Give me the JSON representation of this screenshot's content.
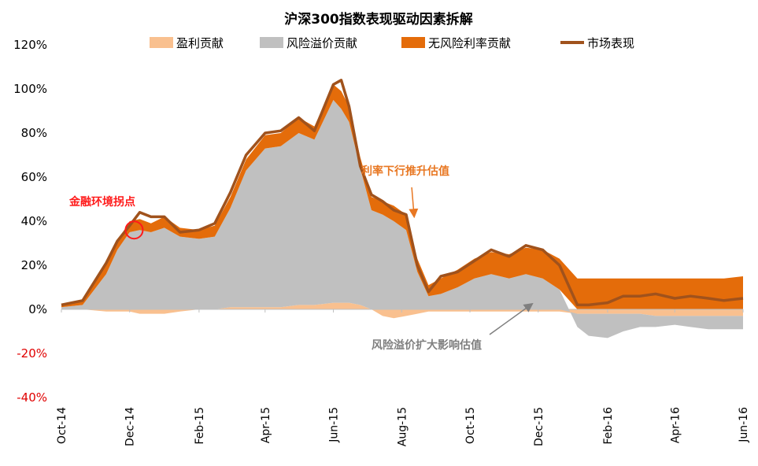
{
  "chart_data": {
    "type": "area",
    "title": "沪深300指数表现驱动因素拆解",
    "xlabel": "",
    "ylabel": "",
    "ylim": [
      -0.4,
      1.2
    ],
    "y_ticks": [
      {
        "value": 1.2,
        "label": "120%"
      },
      {
        "value": 1.0,
        "label": "100%"
      },
      {
        "value": 0.8,
        "label": "80%"
      },
      {
        "value": 0.6,
        "label": "60%"
      },
      {
        "value": 0.4,
        "label": "40%"
      },
      {
        "value": 0.2,
        "label": "20%"
      },
      {
        "value": 0.0,
        "label": "0%"
      },
      {
        "value": -0.2,
        "label": "-20%"
      },
      {
        "value": -0.4,
        "label": "-40%"
      }
    ],
    "x_range": [
      "2014-10-01",
      "2016-06-01"
    ],
    "x_ticks": [
      {
        "date": "2014-10-01",
        "label": "Oct-14"
      },
      {
        "date": "2014-12-01",
        "label": "Dec-14"
      },
      {
        "date": "2015-02-01",
        "label": "Feb-15"
      },
      {
        "date": "2015-04-01",
        "label": "Apr-15"
      },
      {
        "date": "2015-06-01",
        "label": "Jun-15"
      },
      {
        "date": "2015-08-01",
        "label": "Aug-15"
      },
      {
        "date": "2015-10-01",
        "label": "Oct-15"
      },
      {
        "date": "2015-12-01",
        "label": "Dec-15"
      },
      {
        "date": "2016-02-01",
        "label": "Feb-16"
      },
      {
        "date": "2016-04-01",
        "label": "Apr-16"
      },
      {
        "date": "2016-06-01",
        "label": "Jun-16"
      }
    ],
    "legend_position": "top",
    "grid": false,
    "x": [
      "2014-10-01",
      "2014-10-20",
      "2014-11-10",
      "2014-11-20",
      "2014-12-01",
      "2014-12-10",
      "2014-12-20",
      "2015-01-01",
      "2015-01-15",
      "2015-02-01",
      "2015-02-15",
      "2015-03-01",
      "2015-03-15",
      "2015-04-01",
      "2015-04-15",
      "2015-05-01",
      "2015-05-15",
      "2015-06-01",
      "2015-06-08",
      "2015-06-15",
      "2015-06-25",
      "2015-07-05",
      "2015-07-15",
      "2015-07-25",
      "2015-08-05",
      "2015-08-15",
      "2015-08-25",
      "2015-09-05",
      "2015-09-20",
      "2015-10-05",
      "2015-10-20",
      "2015-11-05",
      "2015-11-20",
      "2015-12-05",
      "2015-12-20",
      "2016-01-05",
      "2016-01-15",
      "2016-02-01",
      "2016-02-15",
      "2016-03-01",
      "2016-03-15",
      "2016-04-01",
      "2016-04-15",
      "2016-05-01",
      "2016-05-15",
      "2016-06-01"
    ],
    "series": [
      {
        "name": "盈利贡献",
        "color": "#f9c08f",
        "values": [
          0.0,
          0.0,
          -0.01,
          -0.01,
          -0.01,
          -0.02,
          -0.02,
          -0.02,
          -0.01,
          0.0,
          0.0,
          0.01,
          0.01,
          0.01,
          0.01,
          0.02,
          0.02,
          0.03,
          0.03,
          0.03,
          0.02,
          0.0,
          -0.03,
          -0.04,
          -0.03,
          -0.02,
          -0.01,
          -0.01,
          -0.01,
          -0.01,
          -0.01,
          -0.01,
          -0.01,
          -0.01,
          -0.01,
          -0.02,
          -0.02,
          -0.02,
          -0.02,
          -0.02,
          -0.03,
          -0.03,
          -0.03,
          -0.03,
          -0.03,
          -0.03
        ]
      },
      {
        "name": "风险溢价贡献",
        "color": "#c0c0c0",
        "values": [
          0.01,
          0.02,
          0.16,
          0.27,
          0.35,
          0.36,
          0.35,
          0.37,
          0.33,
          0.32,
          0.33,
          0.45,
          0.62,
          0.72,
          0.73,
          0.78,
          0.75,
          0.92,
          0.88,
          0.82,
          0.62,
          0.45,
          0.43,
          0.4,
          0.36,
          0.17,
          0.06,
          0.07,
          0.1,
          0.14,
          0.16,
          0.14,
          0.16,
          0.14,
          0.09,
          -0.06,
          -0.1,
          -0.11,
          -0.08,
          -0.06,
          -0.05,
          -0.04,
          -0.05,
          -0.06,
          -0.06,
          -0.06
        ]
      },
      {
        "name": "无风险利率贡献",
        "color": "#e46c0a",
        "values": [
          0.01,
          0.02,
          0.04,
          0.04,
          0.05,
          0.05,
          0.04,
          0.05,
          0.04,
          0.04,
          0.05,
          0.05,
          0.05,
          0.06,
          0.06,
          0.07,
          0.06,
          0.07,
          0.08,
          0.07,
          0.05,
          0.06,
          0.06,
          0.07,
          0.07,
          0.06,
          0.05,
          0.07,
          0.08,
          0.09,
          0.1,
          0.11,
          0.12,
          0.13,
          0.14,
          0.14,
          0.14,
          0.14,
          0.14,
          0.14,
          0.14,
          0.14,
          0.14,
          0.14,
          0.14,
          0.15
        ]
      },
      {
        "name": "市场表现",
        "color": "#a0521c",
        "values": [
          0.02,
          0.04,
          0.21,
          0.31,
          0.38,
          0.44,
          0.42,
          0.42,
          0.35,
          0.36,
          0.39,
          0.53,
          0.7,
          0.8,
          0.81,
          0.87,
          0.81,
          1.02,
          1.04,
          0.92,
          0.65,
          0.52,
          0.49,
          0.45,
          0.43,
          0.2,
          0.08,
          0.15,
          0.17,
          0.22,
          0.27,
          0.24,
          0.29,
          0.27,
          0.2,
          0.02,
          0.02,
          0.03,
          0.06,
          0.06,
          0.07,
          0.05,
          0.06,
          0.05,
          0.04,
          0.05
        ]
      }
    ],
    "annotations": [
      {
        "text": "金融环境拐点",
        "color": "#ff1a1a",
        "date": "2014-12-05",
        "value": 0.36
      },
      {
        "text": "利率下行推升估值",
        "color": "#e87722",
        "date": "2015-08-10",
        "value": 0.41
      },
      {
        "text": "风险溢价扩大影响估值",
        "color": "#7f7f7f",
        "date": "2015-11-25",
        "value": 0.03
      }
    ]
  }
}
